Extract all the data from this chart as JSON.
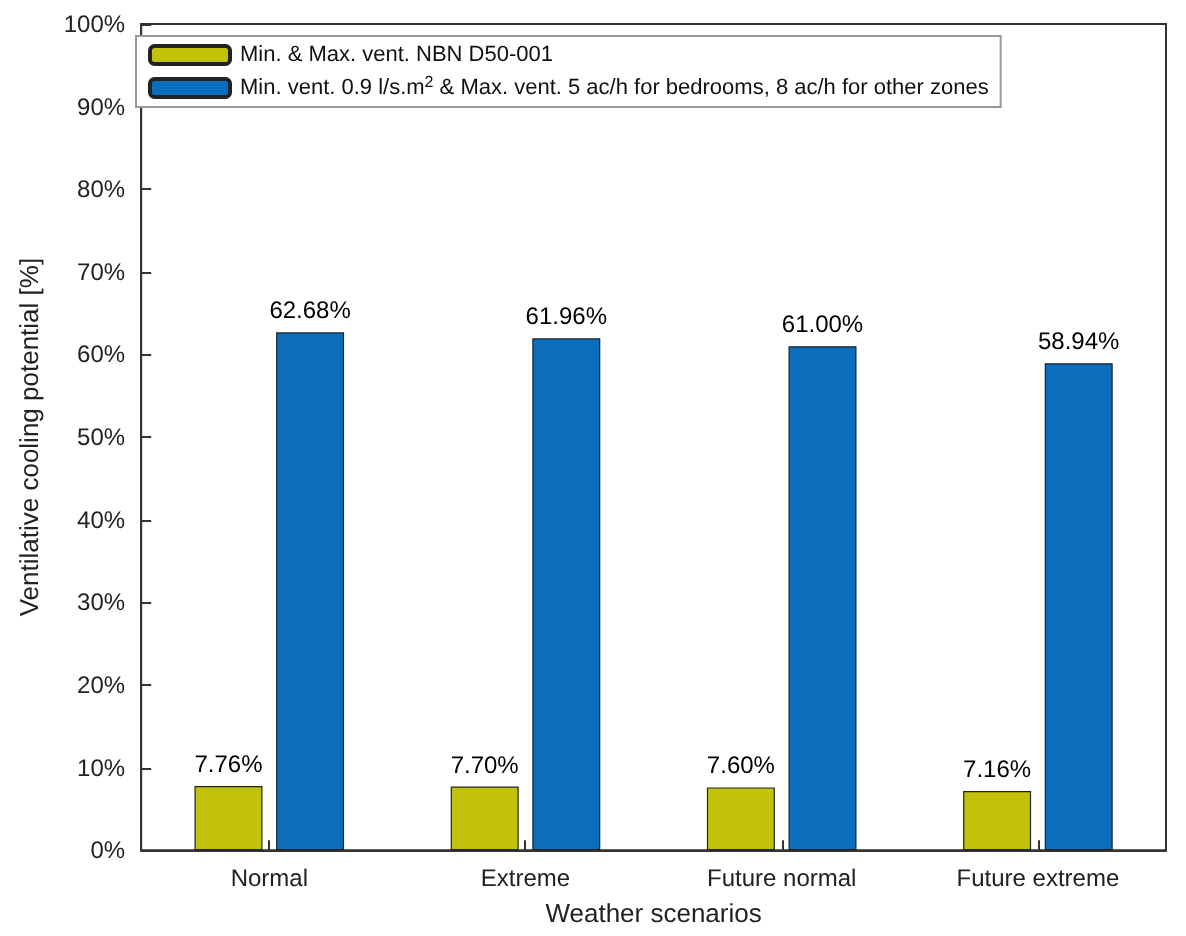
{
  "chart_data": {
    "type": "bar",
    "xlabel": "Weather scenarios",
    "ylabel": "Ventilative cooling potential [%]",
    "categories": [
      "Normal",
      "Extreme",
      "Future normal",
      "Future extreme"
    ],
    "series": [
      {
        "name": "Min. & Max. vent. NBN D50-001",
        "color": "#c2c20a",
        "values": [
          7.76,
          7.7,
          7.6,
          7.16
        ],
        "value_labels": [
          "7.76%",
          "7.70%",
          "7.60%",
          "7.16%"
        ]
      },
      {
        "name": "Min. vent. 0.9 l/s.m$^{2}$ & Max. vent. 5 ac/h for bedrooms, 8 ac/h for other zones",
        "color": "#0a6ebd",
        "values": [
          62.68,
          61.96,
          61.0,
          58.94
        ],
        "value_labels": [
          "62.68%",
          "61.96%",
          "61.00%",
          "58.94%"
        ]
      }
    ],
    "ylim": [
      0,
      100
    ],
    "yticks": [
      {
        "value": 0,
        "label": "0%"
      },
      {
        "value": 10,
        "label": "10%"
      },
      {
        "value": 20,
        "label": "20%"
      },
      {
        "value": 30,
        "label": "30%"
      },
      {
        "value": 40,
        "label": "40%"
      },
      {
        "value": 50,
        "label": "50%"
      },
      {
        "value": 60,
        "label": "60%"
      },
      {
        "value": 70,
        "label": "70%"
      },
      {
        "value": 80,
        "label": "80%"
      },
      {
        "value": 90,
        "label": "90%"
      },
      {
        "value": 100,
        "label": "100%"
      }
    ],
    "legend": "top left",
    "grid": false
  }
}
